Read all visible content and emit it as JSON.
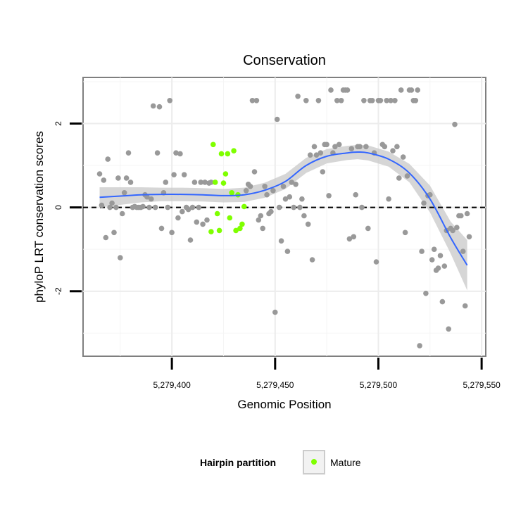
{
  "chart_data": {
    "type": "scatter",
    "title": "Conservation",
    "xlabel": "Genomic Position",
    "ylabel": "phyloP LRT conservation scores",
    "xlim": [
      5279357,
      5279552
    ],
    "ylim": [
      -3.55,
      3.1
    ],
    "x_ticks": [
      5279400,
      5279450,
      5279500,
      5279550
    ],
    "x_tick_labels": [
      "5,279,400",
      "5,279,450",
      "5,279,500",
      "5,279,550"
    ],
    "y_ticks": [
      -2,
      0,
      2
    ],
    "y_tick_labels": [
      "-2",
      "0",
      "2"
    ],
    "grid": true,
    "reference_line": {
      "y": 0,
      "style": "dashed"
    },
    "legend": {
      "title": "Hairpin partition",
      "placement": "bottom",
      "entries": [
        {
          "label": "Mature",
          "color": "#7fff00"
        }
      ]
    },
    "colors": {
      "other": "#999999",
      "mature": "#7fff00",
      "smooth": "#3366ff",
      "band": "#cccccc"
    },
    "series": [
      {
        "group": "other",
        "points": [
          [
            5279365,
            0.8
          ],
          [
            5279366,
            0.05
          ],
          [
            5279367,
            0.65
          ],
          [
            5279368,
            -0.72
          ],
          [
            5279369,
            1.15
          ],
          [
            5279370,
            0.0
          ],
          [
            5279371,
            0.1
          ],
          [
            5279372,
            -0.6
          ],
          [
            5279373,
            0.0
          ],
          [
            5279374,
            0.7
          ],
          [
            5279375,
            -1.2
          ],
          [
            5279376,
            -0.15
          ],
          [
            5279377,
            0.35
          ],
          [
            5279378,
            0.7
          ],
          [
            5279379,
            1.3
          ],
          [
            5279380,
            0.6
          ],
          [
            5279381,
            0.0
          ],
          [
            5279382,
            0.02
          ],
          [
            5279383,
            0.0
          ],
          [
            5279384,
            0.0
          ],
          [
            5279385,
            0.0
          ],
          [
            5279386,
            0.02
          ],
          [
            5279387,
            0.3
          ],
          [
            5279388,
            0.25
          ],
          [
            5279389,
            0.0
          ],
          [
            5279390,
            0.2
          ],
          [
            5279391,
            2.42
          ],
          [
            5279392,
            0.0
          ],
          [
            5279393,
            1.3
          ],
          [
            5279394,
            2.4
          ],
          [
            5279395,
            -0.5
          ],
          [
            5279396,
            0.35
          ],
          [
            5279397,
            0.6
          ],
          [
            5279398,
            0.0
          ],
          [
            5279399,
            2.55
          ],
          [
            5279400,
            -0.6
          ],
          [
            5279401,
            0.78
          ],
          [
            5279402,
            1.3
          ],
          [
            5279403,
            -0.25
          ],
          [
            5279404,
            1.28
          ],
          [
            5279405,
            -0.1
          ],
          [
            5279406,
            0.78
          ],
          [
            5279407,
            0.0
          ],
          [
            5279408,
            -0.05
          ],
          [
            5279409,
            -0.78
          ],
          [
            5279410,
            0.0
          ],
          [
            5279411,
            0.6
          ],
          [
            5279412,
            -0.35
          ],
          [
            5279413,
            0.0
          ],
          [
            5279414,
            0.6
          ],
          [
            5279415,
            -0.4
          ],
          [
            5279416,
            0.6
          ],
          [
            5279417,
            -0.3
          ],
          [
            5279418,
            0.58
          ],
          [
            5279419,
            0.6
          ],
          [
            5279436,
            0.4
          ],
          [
            5279437,
            0.55
          ],
          [
            5279438,
            0.5
          ],
          [
            5279439,
            2.55
          ],
          [
            5279440,
            0.85
          ],
          [
            5279441,
            2.55
          ],
          [
            5279442,
            -0.3
          ],
          [
            5279443,
            -0.2
          ],
          [
            5279444,
            -0.5
          ],
          [
            5279445,
            0.5
          ],
          [
            5279446,
            0.3
          ],
          [
            5279447,
            -0.15
          ],
          [
            5279448,
            -0.1
          ],
          [
            5279449,
            0.4
          ],
          [
            5279450,
            -2.5
          ],
          [
            5279451,
            2.1
          ],
          [
            5279452,
            0.0
          ],
          [
            5279453,
            -0.8
          ],
          [
            5279454,
            0.5
          ],
          [
            5279455,
            0.2
          ],
          [
            5279456,
            -1.05
          ],
          [
            5279457,
            0.25
          ],
          [
            5279458,
            0.6
          ],
          [
            5279459,
            0.0
          ],
          [
            5279460,
            0.55
          ],
          [
            5279461,
            2.65
          ],
          [
            5279462,
            0.0
          ],
          [
            5279463,
            0.2
          ],
          [
            5279464,
            -0.2
          ],
          [
            5279465,
            2.55
          ],
          [
            5279466,
            -0.4
          ],
          [
            5279467,
            1.25
          ],
          [
            5279468,
            -1.25
          ],
          [
            5279469,
            1.45
          ],
          [
            5279470,
            1.25
          ],
          [
            5279471,
            2.55
          ],
          [
            5279472,
            1.3
          ],
          [
            5279473,
            0.85
          ],
          [
            5279474,
            1.5
          ],
          [
            5279475,
            1.5
          ],
          [
            5279476,
            0.28
          ],
          [
            5279477,
            2.8
          ],
          [
            5279478,
            1.3
          ],
          [
            5279479,
            1.45
          ],
          [
            5279480,
            2.55
          ],
          [
            5279481,
            1.5
          ],
          [
            5279482,
            2.55
          ],
          [
            5279483,
            2.8
          ],
          [
            5279484,
            2.8
          ],
          [
            5279485,
            2.8
          ],
          [
            5279486,
            -0.75
          ],
          [
            5279487,
            1.4
          ],
          [
            5279488,
            -0.7
          ],
          [
            5279489,
            0.3
          ],
          [
            5279490,
            1.45
          ],
          [
            5279491,
            1.45
          ],
          [
            5279492,
            0.0
          ],
          [
            5279493,
            2.55
          ],
          [
            5279494,
            1.45
          ],
          [
            5279495,
            -0.5
          ],
          [
            5279496,
            2.55
          ],
          [
            5279497,
            2.55
          ],
          [
            5279498,
            1.3
          ],
          [
            5279499,
            -1.3
          ],
          [
            5279500,
            2.55
          ],
          [
            5279501,
            2.55
          ],
          [
            5279502,
            1.5
          ],
          [
            5279503,
            1.45
          ],
          [
            5279504,
            2.55
          ],
          [
            5279505,
            0.2
          ],
          [
            5279506,
            2.55
          ],
          [
            5279507,
            1.35
          ],
          [
            5279508,
            2.55
          ],
          [
            5279509,
            1.45
          ],
          [
            5279510,
            0.7
          ],
          [
            5279511,
            2.8
          ],
          [
            5279512,
            1.2
          ],
          [
            5279513,
            -0.6
          ],
          [
            5279514,
            0.75
          ],
          [
            5279515,
            2.8
          ],
          [
            5279516,
            2.8
          ],
          [
            5279517,
            2.55
          ],
          [
            5279518,
            2.55
          ],
          [
            5279519,
            2.8
          ],
          [
            5279520,
            -3.3
          ],
          [
            5279521,
            -1.05
          ],
          [
            5279522,
            0.1
          ],
          [
            5279523,
            -2.05
          ],
          [
            5279524,
            0.28
          ],
          [
            5279525,
            0.3
          ],
          [
            5279526,
            -1.25
          ],
          [
            5279527,
            -1.0
          ],
          [
            5279528,
            -1.5
          ],
          [
            5279529,
            -1.45
          ],
          [
            5279530,
            -1.15
          ],
          [
            5279531,
            -2.25
          ],
          [
            5279532,
            -1.4
          ],
          [
            5279533,
            -0.55
          ],
          [
            5279534,
            -2.9
          ],
          [
            5279535,
            -0.5
          ],
          [
            5279536,
            -0.55
          ],
          [
            5279537,
            1.98
          ],
          [
            5279538,
            -0.48
          ],
          [
            5279539,
            -0.2
          ],
          [
            5279540,
            -0.2
          ],
          [
            5279541,
            -1.05
          ],
          [
            5279542,
            -2.35
          ],
          [
            5279543,
            -0.15
          ],
          [
            5279544,
            -0.7
          ]
        ]
      },
      {
        "group": "mature",
        "points": [
          [
            5279419,
            -0.58
          ],
          [
            5279420,
            1.5
          ],
          [
            5279421,
            0.6
          ],
          [
            5279422,
            -0.15
          ],
          [
            5279423,
            -0.55
          ],
          [
            5279424,
            1.28
          ],
          [
            5279425,
            0.58
          ],
          [
            5279426,
            0.8
          ],
          [
            5279427,
            1.28
          ],
          [
            5279428,
            -0.25
          ],
          [
            5279429,
            0.35
          ],
          [
            5279430,
            1.35
          ],
          [
            5279431,
            -0.55
          ],
          [
            5279432,
            0.3
          ],
          [
            5279433,
            -0.5
          ],
          [
            5279434,
            -0.4
          ],
          [
            5279435,
            0.02
          ]
        ]
      }
    ],
    "smooth": {
      "x": [
        5279365,
        5279375,
        5279385,
        5279395,
        5279405,
        5279415,
        5279425,
        5279435,
        5279445,
        5279455,
        5279465,
        5279475,
        5279485,
        5279490,
        5279495,
        5279505,
        5279515,
        5279525,
        5279535,
        5279543
      ],
      "y": [
        0.24,
        0.27,
        0.3,
        0.31,
        0.31,
        0.3,
        0.28,
        0.3,
        0.41,
        0.62,
        1.0,
        1.22,
        1.3,
        1.32,
        1.3,
        1.15,
        0.82,
        0.2,
        -0.72,
        -1.38
      ],
      "lower": [
        0.0,
        0.06,
        0.12,
        0.15,
        0.15,
        0.14,
        0.12,
        0.13,
        0.23,
        0.44,
        0.82,
        1.05,
        1.13,
        1.15,
        1.12,
        0.97,
        0.6,
        -0.12,
        -1.1,
        -1.98
      ],
      "upper": [
        0.48,
        0.48,
        0.48,
        0.47,
        0.47,
        0.46,
        0.44,
        0.47,
        0.59,
        0.8,
        1.18,
        1.39,
        1.47,
        1.49,
        1.48,
        1.33,
        1.04,
        0.52,
        -0.34,
        -0.78
      ]
    }
  }
}
